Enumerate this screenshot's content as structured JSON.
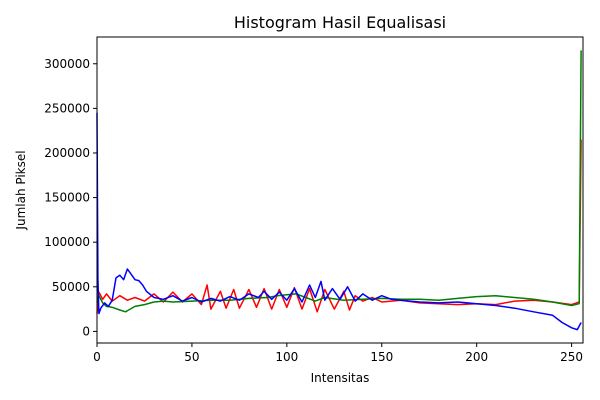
{
  "chart_data": {
    "type": "line",
    "title": "Histogram Hasil Equalisasi",
    "xlabel": "Intensitas",
    "ylabel": "Jumlah Piksel",
    "xlim": [
      0,
      256
    ],
    "ylim": [
      -13000,
      330000
    ],
    "xticks": [
      0,
      50,
      100,
      150,
      200,
      250
    ],
    "yticks": [
      0,
      50000,
      100000,
      150000,
      200000,
      250000,
      300000
    ],
    "grid": false,
    "legend": "none",
    "series": [
      {
        "color": "#ff0000",
        "points": [
          [
            0,
            20000
          ],
          [
            1,
            44000
          ],
          [
            3,
            36000
          ],
          [
            5,
            42000
          ],
          [
            8,
            34000
          ],
          [
            12,
            40000
          ],
          [
            16,
            35000
          ],
          [
            20,
            38000
          ],
          [
            25,
            34000
          ],
          [
            30,
            42000
          ],
          [
            35,
            33000
          ],
          [
            40,
            44000
          ],
          [
            45,
            33000
          ],
          [
            50,
            42000
          ],
          [
            55,
            30000
          ],
          [
            58,
            52000
          ],
          [
            60,
            25000
          ],
          [
            65,
            45000
          ],
          [
            68,
            26000
          ],
          [
            72,
            47000
          ],
          [
            75,
            26000
          ],
          [
            80,
            47000
          ],
          [
            84,
            27000
          ],
          [
            88,
            48000
          ],
          [
            92,
            25000
          ],
          [
            96,
            47000
          ],
          [
            100,
            27000
          ],
          [
            104,
            49000
          ],
          [
            108,
            25000
          ],
          [
            112,
            48000
          ],
          [
            116,
            22000
          ],
          [
            120,
            47000
          ],
          [
            125,
            25000
          ],
          [
            130,
            45000
          ],
          [
            133,
            24000
          ],
          [
            136,
            40000
          ],
          [
            140,
            34000
          ],
          [
            145,
            38000
          ],
          [
            150,
            33000
          ],
          [
            160,
            35000
          ],
          [
            170,
            32000
          ],
          [
            180,
            31000
          ],
          [
            190,
            30000
          ],
          [
            200,
            31000
          ],
          [
            210,
            30000
          ],
          [
            220,
            34000
          ],
          [
            230,
            35000
          ],
          [
            240,
            33000
          ],
          [
            250,
            30000
          ],
          [
            254,
            33000
          ],
          [
            255,
            215000
          ]
        ]
      },
      {
        "color": "#008000",
        "points": [
          [
            0,
            33000
          ],
          [
            1,
            40000
          ],
          [
            3,
            32000
          ],
          [
            5,
            28000
          ],
          [
            8,
            27000
          ],
          [
            12,
            24000
          ],
          [
            15,
            22000
          ],
          [
            20,
            28000
          ],
          [
            25,
            30000
          ],
          [
            30,
            33000
          ],
          [
            35,
            34000
          ],
          [
            40,
            33000
          ],
          [
            50,
            34000
          ],
          [
            60,
            35000
          ],
          [
            70,
            35000
          ],
          [
            80,
            37000
          ],
          [
            90,
            38000
          ],
          [
            95,
            40000
          ],
          [
            100,
            41000
          ],
          [
            105,
            42000
          ],
          [
            110,
            38000
          ],
          [
            115,
            34000
          ],
          [
            120,
            38000
          ],
          [
            130,
            35000
          ],
          [
            140,
            36000
          ],
          [
            150,
            37000
          ],
          [
            160,
            36000
          ],
          [
            170,
            36000
          ],
          [
            180,
            35000
          ],
          [
            190,
            37000
          ],
          [
            200,
            39000
          ],
          [
            210,
            40000
          ],
          [
            220,
            38000
          ],
          [
            230,
            36000
          ],
          [
            240,
            33000
          ],
          [
            250,
            29000
          ],
          [
            254,
            31000
          ],
          [
            255,
            315000
          ]
        ]
      },
      {
        "color": "#0000ff",
        "points": [
          [
            0,
            245000
          ],
          [
            0.5,
            60000
          ],
          [
            1,
            20000
          ],
          [
            2,
            26000
          ],
          [
            4,
            32000
          ],
          [
            6,
            28000
          ],
          [
            8,
            35000
          ],
          [
            10,
            60000
          ],
          [
            12,
            63000
          ],
          [
            14,
            58000
          ],
          [
            16,
            70000
          ],
          [
            18,
            64000
          ],
          [
            20,
            58000
          ],
          [
            22,
            57000
          ],
          [
            24,
            52000
          ],
          [
            26,
            45000
          ],
          [
            30,
            38000
          ],
          [
            35,
            36000
          ],
          [
            40,
            40000
          ],
          [
            45,
            34000
          ],
          [
            50,
            38000
          ],
          [
            55,
            33000
          ],
          [
            60,
            37000
          ],
          [
            65,
            34000
          ],
          [
            70,
            39000
          ],
          [
            75,
            35000
          ],
          [
            80,
            42000
          ],
          [
            85,
            38000
          ],
          [
            88,
            45000
          ],
          [
            92,
            36000
          ],
          [
            96,
            44000
          ],
          [
            100,
            35000
          ],
          [
            104,
            48000
          ],
          [
            108,
            33000
          ],
          [
            112,
            52000
          ],
          [
            115,
            38000
          ],
          [
            118,
            56000
          ],
          [
            120,
            35000
          ],
          [
            124,
            48000
          ],
          [
            128,
            36000
          ],
          [
            132,
            50000
          ],
          [
            136,
            34000
          ],
          [
            140,
            42000
          ],
          [
            145,
            35000
          ],
          [
            150,
            40000
          ],
          [
            155,
            36000
          ],
          [
            160,
            35000
          ],
          [
            170,
            33000
          ],
          [
            180,
            32000
          ],
          [
            190,
            33000
          ],
          [
            200,
            31000
          ],
          [
            210,
            29000
          ],
          [
            220,
            26000
          ],
          [
            230,
            22000
          ],
          [
            240,
            18000
          ],
          [
            245,
            10000
          ],
          [
            250,
            4000
          ],
          [
            253,
            2000
          ],
          [
            255,
            10000
          ]
        ]
      }
    ]
  }
}
